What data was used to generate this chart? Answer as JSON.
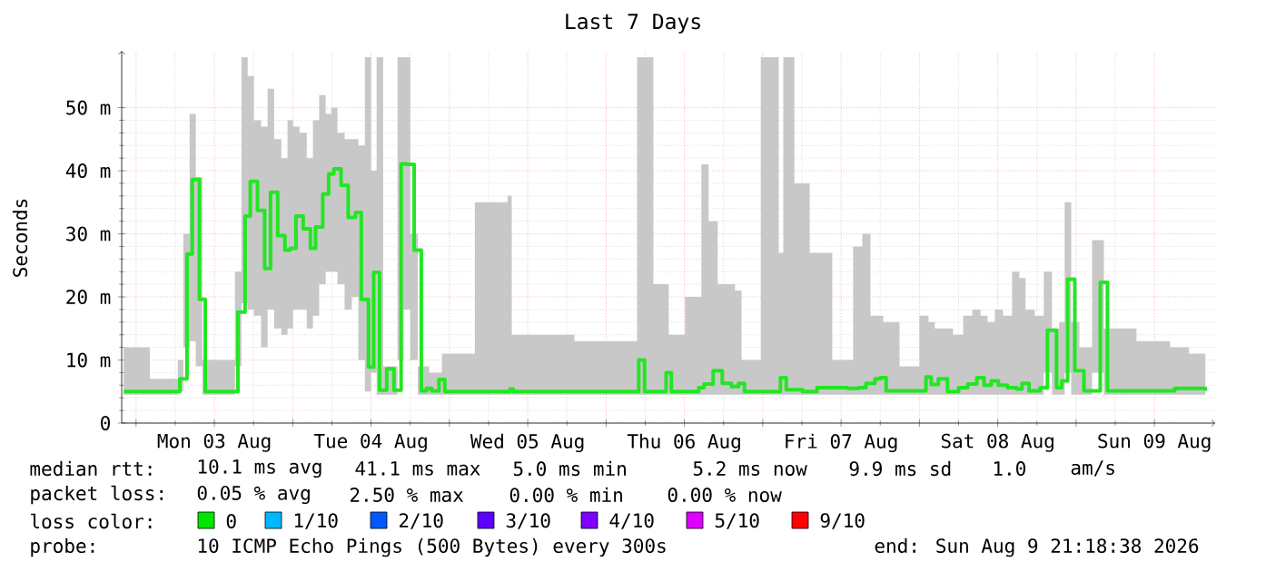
{
  "chart_data": {
    "type": "step",
    "title": "Last 7 Days",
    "ylabel": "Seconds",
    "x": [
      "2026-08-02T22:06",
      "2026-08-03T06:06",
      "2026-08-03T06:42",
      "2026-08-03T07:48",
      "2026-08-03T08:36",
      "2026-08-03T09:42",
      "2026-08-03T10:36",
      "2026-08-03T14:42",
      "2026-08-03T15:36",
      "2026-08-03T16:42",
      "2026-08-03T17:30",
      "2026-08-03T18:36",
      "2026-08-03T19:42",
      "2026-08-03T20:36",
      "2026-08-03T21:42",
      "2026-08-03T22:48",
      "2026-08-03T23:36",
      "2026-08-04T00:30",
      "2026-08-04T01:36",
      "2026-08-04T02:42",
      "2026-08-04T03:30",
      "2026-08-04T04:36",
      "2026-08-04T05:30",
      "2026-08-04T06:18",
      "2026-08-04T07:24",
      "2026-08-04T08:30",
      "2026-08-04T09:36",
      "2026-08-04T10:30",
      "2026-08-04T11:36",
      "2026-08-04T12:24",
      "2026-08-04T13:18",
      "2026-08-04T14:24",
      "2026-08-04T15:30",
      "2026-08-04T16:36",
      "2026-08-04T17:24",
      "2026-08-04T18:36",
      "2026-08-04T19:42",
      "2026-08-04T20:30",
      "2026-08-04T21:18",
      "2026-08-04T22:24",
      "2026-08-04T23:18",
      "2026-08-05T08:30",
      "2026-08-05T09:18",
      "2026-08-05T09:48",
      "2026-08-06T04:30",
      "2026-08-06T05:00",
      "2026-08-06T05:54",
      "2026-08-06T08:36",
      "2026-08-06T09:12",
      "2026-08-06T10:00",
      "2026-08-06T14:12",
      "2026-08-06T15:00",
      "2026-08-06T16:24",
      "2026-08-06T17:48",
      "2026-08-06T19:12",
      "2026-08-06T20:18",
      "2026-08-06T21:12",
      "2026-08-07T02:12",
      "2026-08-07T02:42",
      "2026-08-07T03:36",
      "2026-08-07T06:06",
      "2026-08-07T08:18",
      "2026-08-07T13:00",
      "2026-08-07T14:42",
      "2026-08-07T15:48",
      "2026-08-07T17:12",
      "2026-08-07T18:00",
      "2026-08-07T18:54",
      "2026-08-07T23:00",
      "2026-08-08T01:00",
      "2026-08-08T01:48",
      "2026-08-08T02:54",
      "2026-08-08T04:18",
      "2026-08-08T06:00",
      "2026-08-08T07:24",
      "2026-08-08T08:48",
      "2026-08-08T09:54",
      "2026-08-08T11:00",
      "2026-08-08T12:06",
      "2026-08-08T13:30",
      "2026-08-08T14:54",
      "2026-08-08T15:42",
      "2026-08-08T16:48",
      "2026-08-08T18:30",
      "2026-08-08T19:36",
      "2026-08-08T21:00",
      "2026-08-08T21:48",
      "2026-08-08T22:42",
      "2026-08-08T23:48",
      "2026-08-09T01:12",
      "2026-08-09T03:42",
      "2026-08-09T04:48",
      "2026-08-09T13:42",
      "2026-08-09T15:06",
      "2026-08-09T19:30",
      "2026-08-09T19:48"
    ],
    "series": [
      {
        "color": "#22e622",
        "values": [
          5.0,
          5.0,
          7.0,
          26.8,
          38.6,
          19.6,
          5.0,
          5.0,
          17.6,
          32.8,
          38.3,
          33.7,
          24.5,
          36.6,
          29.7,
          27.4,
          27.7,
          32.8,
          30.8,
          27.7,
          31.1,
          36.3,
          39.5,
          40.3,
          37.7,
          32.6,
          33.4,
          19.6,
          8.9,
          23.9,
          5.2,
          8.6,
          5.2,
          41.1,
          41.0,
          27.4,
          5.1,
          5.5,
          5.1,
          6.9,
          5.0,
          5.0,
          5.4,
          5.0,
          5.0,
          10.0,
          5.0,
          5.0,
          8.0,
          5.0,
          5.6,
          6.2,
          8.3,
          6.3,
          5.8,
          6.3,
          5.0,
          5.0,
          7.2,
          5.3,
          5.0,
          5.6,
          5.5,
          5.6,
          6.3,
          7.0,
          7.2,
          5.1,
          5.1,
          7.3,
          6.1,
          7.0,
          5.0,
          5.6,
          6.2,
          7.2,
          6.0,
          6.7,
          6.0,
          5.6,
          5.4,
          6.3,
          5.1,
          5.6,
          14.7,
          5.6,
          6.7,
          22.8,
          8.3,
          5.1,
          22.3,
          5.1,
          5.1,
          5.5,
          5.5,
          5.1
        ],
        "upper": [
          12,
          7,
          10,
          30,
          49,
          39,
          10,
          10,
          24,
          58,
          55,
          48,
          47,
          53,
          45,
          42,
          48,
          47,
          46,
          42,
          48,
          52,
          49,
          50,
          46,
          45,
          45,
          44,
          58,
          40,
          58,
          9,
          9,
          58,
          58,
          30,
          9,
          9,
          8,
          8,
          11,
          35,
          36,
          14,
          13,
          58,
          58,
          22,
          22,
          14,
          20,
          41,
          32,
          22,
          22,
          21,
          10,
          58,
          27,
          58,
          38,
          27,
          10,
          28,
          30,
          17,
          17,
          16,
          9,
          17,
          16,
          15,
          15,
          14,
          17,
          18,
          17,
          16,
          18,
          17,
          24,
          23,
          18,
          17,
          24,
          15,
          16,
          35,
          16,
          12,
          29,
          15,
          13,
          12,
          11,
          11
        ],
        "lower": [
          4.5,
          4.5,
          5,
          12,
          13,
          9,
          4.5,
          4.5,
          9,
          19,
          18,
          17,
          12,
          18,
          15,
          14,
          15,
          18,
          18,
          15,
          17,
          22,
          24,
          24,
          22,
          18,
          20,
          10,
          5,
          8,
          4.5,
          4.5,
          4.5,
          10,
          18,
          10,
          4.5,
          4.5,
          4.5,
          4.5,
          4.5,
          4.5,
          4.5,
          4.5,
          4.5,
          4.5,
          4.5,
          4.5,
          4.5,
          4.5,
          4.5,
          4.5,
          4.5,
          4.5,
          4.5,
          4.5,
          4.5,
          4.5,
          4.5,
          4.5,
          4.5,
          4.5,
          4.5,
          4.5,
          4.5,
          4.5,
          4.5,
          4.5,
          4.5,
          4.5,
          4.5,
          4.5,
          4.5,
          4.5,
          4.5,
          4.5,
          4.5,
          4.5,
          4.5,
          4.5,
          4.5,
          4.5,
          4.5,
          4.5,
          8,
          4.5,
          4.5,
          8,
          4.5,
          4.5,
          8,
          4.5,
          4.5,
          4.5,
          4.5,
          4.5
        ]
      }
    ],
    "xlim": [
      "2026-08-02T21:48",
      "2026-08-09T21:18"
    ],
    "xticks": [
      {
        "value": "2026-08-03",
        "label": null
      },
      {
        "value": "2026-08-03T12:00",
        "label": "Mon 03 Aug"
      },
      {
        "value": "2026-08-04",
        "label": null
      },
      {
        "value": "2026-08-04T12:00",
        "label": "Tue 04 Aug"
      },
      {
        "value": "2026-08-05",
        "label": null
      },
      {
        "value": "2026-08-05T12:00",
        "label": "Wed 05 Aug"
      },
      {
        "value": "2026-08-06",
        "label": null
      },
      {
        "value": "2026-08-06T12:00",
        "label": "Thu 06 Aug"
      },
      {
        "value": "2026-08-07",
        "label": null
      },
      {
        "value": "2026-08-07T12:00",
        "label": "Fri 07 Aug"
      },
      {
        "value": "2026-08-08",
        "label": null
      },
      {
        "value": "2026-08-08T12:00",
        "label": "Sat 08 Aug"
      },
      {
        "value": "2026-08-09",
        "label": null
      },
      {
        "value": "2026-08-09T12:00",
        "label": "Sun 09 Aug"
      }
    ],
    "ylim": [
      0,
      59
    ],
    "yticks": [
      0,
      {
        "value": 10,
        "label": "10 m"
      },
      {
        "value": 20,
        "label": "20 m"
      },
      {
        "value": 30,
        "label": "30 m"
      },
      {
        "value": 40,
        "label": "40 m"
      },
      {
        "value": 50,
        "label": "50 m"
      }
    ],
    "grid": true,
    "marker": "none",
    "annotations": [
      "median rtt:",
      "10.1 ms avg",
      "41.1 ms max",
      "5.0 ms min",
      "5.2 ms now",
      "9.9 ms sd",
      "1.0",
      "am/s",
      "packet loss:",
      "0.05 % avg",
      "2.50 % max",
      "0.00 % min",
      "0.00 % now",
      "loss color:",
      "0",
      "1/10",
      "2/10",
      "3/10",
      "4/10",
      "5/10",
      "9/10",
      "probe:",
      "10 ICMP Echo Pings (500 Bytes) every 300s",
      "end: Sun Aug  9 21:18:38 2026"
    ]
  }
}
